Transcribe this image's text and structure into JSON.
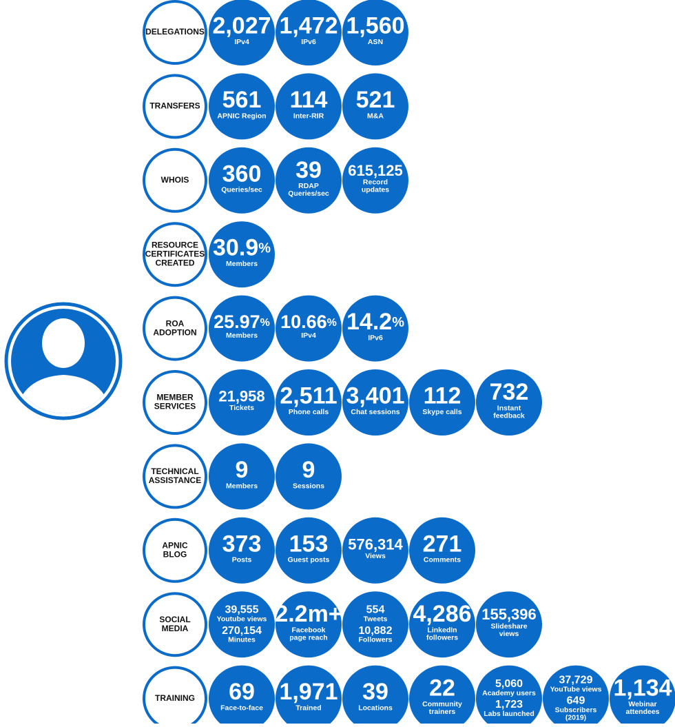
{
  "rows": [
    {
      "label": [
        "DELEGATIONS"
      ],
      "items": [
        {
          "parts": [
            {
              "value": "2,027",
              "caption": [
                "IPv4"
              ]
            }
          ]
        },
        {
          "parts": [
            {
              "value": "1,472",
              "caption": [
                "IPv6"
              ]
            }
          ]
        },
        {
          "parts": [
            {
              "value": "1,560",
              "caption": [
                "ASN"
              ]
            }
          ]
        }
      ]
    },
    {
      "label": [
        "TRANSFERS"
      ],
      "items": [
        {
          "parts": [
            {
              "value": "561",
              "caption": [
                "APNIC Region"
              ]
            }
          ]
        },
        {
          "parts": [
            {
              "value": "114",
              "caption": [
                "Inter-RIR"
              ]
            }
          ]
        },
        {
          "parts": [
            {
              "value": "521",
              "caption": [
                "M&A"
              ]
            }
          ]
        }
      ]
    },
    {
      "label": [
        "WHOIS"
      ],
      "items": [
        {
          "parts": [
            {
              "value": "360",
              "caption": [
                "Queries/sec"
              ]
            }
          ]
        },
        {
          "parts": [
            {
              "value": "39",
              "caption": [
                "RDAP",
                "Queries/sec"
              ]
            }
          ]
        },
        {
          "parts": [
            {
              "value": "615,125",
              "caption": [
                "Record",
                "updates"
              ]
            }
          ]
        }
      ]
    },
    {
      "label": [
        "RESOURCE",
        "CERTIFICATES",
        "CREATED"
      ],
      "items": [
        {
          "parts": [
            {
              "value": "30.9",
              "unit": "%",
              "caption": [
                "Members"
              ]
            }
          ]
        }
      ]
    },
    {
      "label": [
        "ROA",
        "ADOPTION"
      ],
      "items": [
        {
          "parts": [
            {
              "value": "25.97",
              "unit": "%",
              "caption": [
                "Members"
              ]
            }
          ]
        },
        {
          "parts": [
            {
              "value": "10.66",
              "unit": "%",
              "caption": [
                "IPv4"
              ]
            }
          ]
        },
        {
          "parts": [
            {
              "value": "14.2",
              "unit": "%",
              "caption": [
                "IPv6"
              ]
            }
          ]
        }
      ]
    },
    {
      "label": [
        "MEMBER",
        "SERVICES"
      ],
      "items": [
        {
          "parts": [
            {
              "value": "21,958",
              "caption": [
                "Tickets"
              ]
            }
          ]
        },
        {
          "parts": [
            {
              "value": "2,511",
              "caption": [
                "Phone calls"
              ]
            }
          ]
        },
        {
          "parts": [
            {
              "value": "3,401",
              "caption": [
                "Chat sessions"
              ]
            }
          ]
        },
        {
          "parts": [
            {
              "value": "112",
              "caption": [
                "Skype calls"
              ]
            }
          ]
        },
        {
          "parts": [
            {
              "value": "732",
              "caption": [
                "Instant",
                "feedback"
              ]
            }
          ]
        }
      ]
    },
    {
      "label": [
        "TECHNICAL",
        "ASSISTANCE"
      ],
      "items": [
        {
          "parts": [
            {
              "value": "9",
              "caption": [
                "Members"
              ]
            }
          ]
        },
        {
          "parts": [
            {
              "value": "9",
              "caption": [
                "Sessions"
              ]
            }
          ]
        }
      ]
    },
    {
      "label": [
        "APNIC",
        "BLOG"
      ],
      "items": [
        {
          "parts": [
            {
              "value": "373",
              "caption": [
                "Posts"
              ]
            }
          ]
        },
        {
          "parts": [
            {
              "value": "153",
              "caption": [
                "Guest posts"
              ]
            }
          ]
        },
        {
          "parts": [
            {
              "value": "576,314",
              "caption": [
                "Views"
              ]
            }
          ]
        },
        {
          "parts": [
            {
              "value": "271",
              "caption": [
                "Comments"
              ]
            }
          ]
        }
      ]
    },
    {
      "label": [
        "SOCIAL",
        "MEDIA"
      ],
      "items": [
        {
          "parts": [
            {
              "value": "39,555",
              "caption": [
                "Youtube views"
              ]
            },
            {
              "value": "270,154",
              "caption": [
                "Minutes"
              ]
            }
          ]
        },
        {
          "parts": [
            {
              "value": "2.2m+",
              "caption": [
                "Facebook",
                "page reach"
              ]
            }
          ]
        },
        {
          "parts": [
            {
              "value": "554",
              "caption": [
                "Tweets"
              ]
            },
            {
              "value": "10,882",
              "caption": [
                "Followers"
              ]
            }
          ]
        },
        {
          "parts": [
            {
              "value": "4,286",
              "caption": [
                "LinkedIn",
                "followers"
              ]
            }
          ]
        },
        {
          "parts": [
            {
              "value": "155,396",
              "caption": [
                "Slideshare",
                "views"
              ]
            }
          ]
        }
      ]
    },
    {
      "label": [
        "TRAINING"
      ],
      "items": [
        {
          "parts": [
            {
              "value": "69",
              "caption": [
                "Face-to-face"
              ]
            }
          ]
        },
        {
          "parts": [
            {
              "value": "1,971",
              "caption": [
                "Trained"
              ]
            }
          ]
        },
        {
          "parts": [
            {
              "value": "39",
              "caption": [
                "Locations"
              ]
            }
          ]
        },
        {
          "parts": [
            {
              "value": "22",
              "caption": [
                "Community",
                "trainers"
              ]
            }
          ]
        },
        {
          "parts": [
            {
              "value": "5,060",
              "caption": [
                "Academy users"
              ]
            },
            {
              "value": "1,723",
              "caption": [
                "Labs launched"
              ]
            }
          ]
        },
        {
          "parts": [
            {
              "value": "37,729",
              "caption": [
                "YouTube views"
              ]
            },
            {
              "value": "649",
              "caption": [
                "Subscribers",
                "(2019)"
              ]
            }
          ]
        },
        {
          "parts": [
            {
              "value": "1,134",
              "caption": [
                "Webinar",
                "attendees"
              ]
            }
          ]
        }
      ]
    }
  ]
}
